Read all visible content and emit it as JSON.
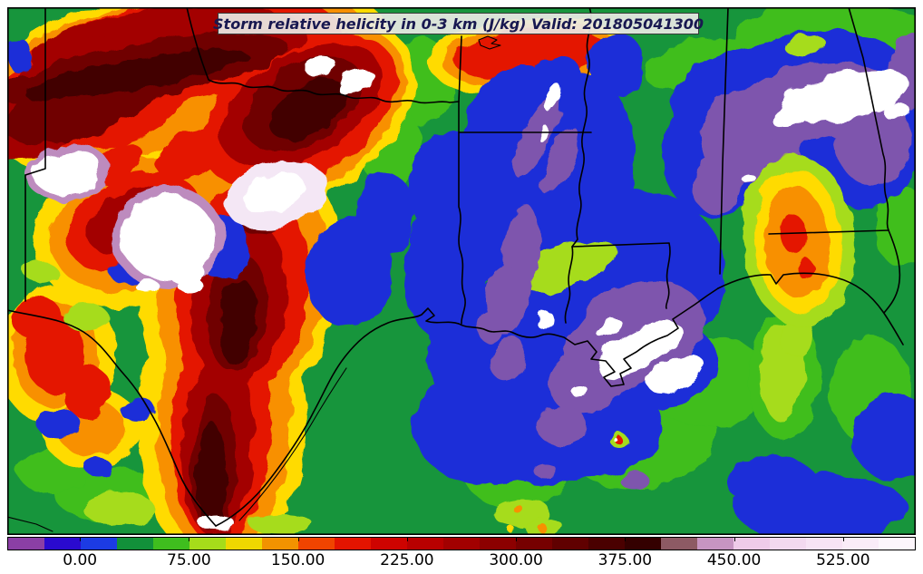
{
  "title": {
    "text": "Storm relative helicity in 0-3 km (J/kg) Valid: 201805041300",
    "text_color": "#181850",
    "box_bg": "#ECEAE6"
  },
  "colorbar": {
    "orientation": "horizontal",
    "units": "J/kg",
    "value_min": -50,
    "value_max": 575,
    "segment_step": 25,
    "tick_labels": [
      "0.00",
      "75.00",
      "150.00",
      "225.00",
      "300.00",
      "375.00",
      "450.00",
      "525.00"
    ],
    "tick_values": [
      0,
      75,
      150,
      225,
      300,
      375,
      450,
      525
    ],
    "segment_colors": [
      "#8B3FA5",
      "#2A0ACF",
      "#1C3BE4",
      "#12913A",
      "#3FBE1E",
      "#A6DC1A",
      "#EFD700",
      "#F29200",
      "#F04400",
      "#E31400",
      "#CE0300",
      "#B80000",
      "#A20000",
      "#8C0000",
      "#760000",
      "#600000",
      "#4A0000",
      "#340000",
      "#8D5A64",
      "#C795C2",
      "#EFCBE9",
      "#F3D9EF",
      "#F7E3F4",
      "#FAECF8",
      "#FDF6FC"
    ]
  },
  "map": {
    "palette": {
      "green_dark": "#17953C",
      "green": "#3FBE1E",
      "lime": "#A6DC1A",
      "yellow": "#FFDB00",
      "orange": "#F89000",
      "red": "#E41500",
      "red_dark": "#A30000",
      "maroon": "#700000",
      "maroon_darkest": "#420000",
      "blue": "#1C2FD8",
      "purple": "#7E55AD",
      "mauve": "#BD8BBE",
      "white": "#FFFFFF",
      "pink_white": "#F4E7F5"
    }
  },
  "chart_data": {
    "type": "heatmap",
    "title": "Storm relative helicity in 0-3 km (J/kg) Valid: 201805041300",
    "units": "J/kg",
    "legend_position": "bottom",
    "colorbar_ticks": [
      0,
      75,
      150,
      225,
      300,
      375,
      450,
      525
    ],
    "colorbar_range": [
      -50,
      575
    ],
    "high_value_regions": [
      "north and central Texas: 300 to >575 J/kg (dark red cores with white saturated maxima)",
      "coastal Alabama / Florida panhandle: local 150-300 J/kg orange-red maximum"
    ],
    "low_value_regions": [
      "Louisiana, Mississippi and adjacent Gulf: below 0 J/kg (blue) with purple/white minima below -50",
      "eastern green background: roughly 50-100 J/kg"
    ]
  }
}
